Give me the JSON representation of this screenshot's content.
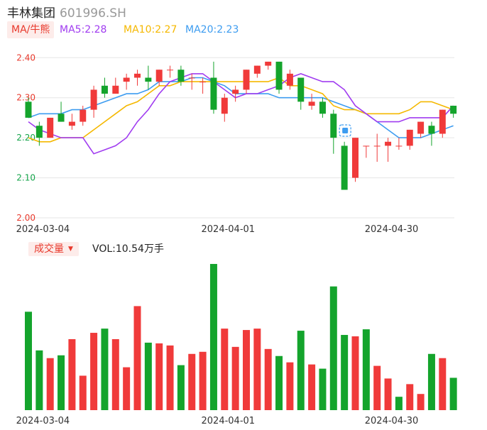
{
  "header": {
    "name": "丰林集团",
    "code": "601996.SH"
  },
  "ma_legend": {
    "tab_label": "MA/牛熊",
    "ma5": {
      "label": "MA5:2.28",
      "color": "#a03cf0"
    },
    "ma10": {
      "label": "MA10:2.27",
      "color": "#f5b800"
    },
    "ma20": {
      "label": "MA20:2.23",
      "color": "#3d9cf0"
    }
  },
  "volume_legend": {
    "tab_label": "成交量",
    "caret": "▼",
    "vol_label": "VOL:10.54万手"
  },
  "colors": {
    "up": "#f03a3a",
    "down": "#14a42c",
    "grid": "#e6e6e6"
  },
  "chart_data": [
    {
      "type": "candlestick",
      "y_ticks": [
        "2.40",
        "2.30",
        "2.20",
        "2.10",
        "2.00"
      ],
      "y_tick_values": [
        2.4,
        2.3,
        2.2,
        2.1,
        2.0
      ],
      "ylim": [
        2.0,
        2.42
      ],
      "x_tick_labels": [
        "2024-03-04",
        "2024-04-01",
        "2024-04-30"
      ],
      "x_tick_index": [
        1,
        18,
        33
      ],
      "candles": [
        {
          "o": 2.29,
          "c": 2.25,
          "h": 2.3,
          "l": 2.25
        },
        {
          "o": 2.23,
          "c": 2.2,
          "h": 2.24,
          "l": 2.18
        },
        {
          "o": 2.2,
          "c": 2.25,
          "h": 2.25,
          "l": 2.2
        },
        {
          "o": 2.26,
          "c": 2.24,
          "h": 2.29,
          "l": 2.24
        },
        {
          "o": 2.23,
          "c": 2.24,
          "h": 2.26,
          "l": 2.22
        },
        {
          "o": 2.24,
          "c": 2.27,
          "h": 2.28,
          "l": 2.23
        },
        {
          "o": 2.27,
          "c": 2.32,
          "h": 2.33,
          "l": 2.25
        },
        {
          "o": 2.33,
          "c": 2.31,
          "h": 2.35,
          "l": 2.3
        },
        {
          "o": 2.31,
          "c": 2.33,
          "h": 2.35,
          "l": 2.31
        },
        {
          "o": 2.34,
          "c": 2.35,
          "h": 2.36,
          "l": 2.32
        },
        {
          "o": 2.35,
          "c": 2.36,
          "h": 2.37,
          "l": 2.33
        },
        {
          "o": 2.35,
          "c": 2.34,
          "h": 2.38,
          "l": 2.32
        },
        {
          "o": 2.34,
          "c": 2.37,
          "h": 2.37,
          "l": 2.33
        },
        {
          "o": 2.37,
          "c": 2.37,
          "h": 2.38,
          "l": 2.35
        },
        {
          "o": 2.37,
          "c": 2.34,
          "h": 2.38,
          "l": 2.33
        },
        {
          "o": 2.35,
          "c": 2.35,
          "h": 2.36,
          "l": 2.32
        },
        {
          "o": 2.34,
          "c": 2.34,
          "h": 2.35,
          "l": 2.31
        },
        {
          "o": 2.35,
          "c": 2.27,
          "h": 2.39,
          "l": 2.26
        },
        {
          "o": 2.26,
          "c": 2.3,
          "h": 2.31,
          "l": 2.24
        },
        {
          "o": 2.31,
          "c": 2.32,
          "h": 2.33,
          "l": 2.29
        },
        {
          "o": 2.32,
          "c": 2.37,
          "h": 2.37,
          "l": 2.31
        },
        {
          "o": 2.36,
          "c": 2.38,
          "h": 2.38,
          "l": 2.35
        },
        {
          "o": 2.38,
          "c": 2.39,
          "h": 2.39,
          "l": 2.37
        },
        {
          "o": 2.39,
          "c": 2.32,
          "h": 2.39,
          "l": 2.31
        },
        {
          "o": 2.33,
          "c": 2.36,
          "h": 2.37,
          "l": 2.32
        },
        {
          "o": 2.35,
          "c": 2.29,
          "h": 2.35,
          "l": 2.27
        },
        {
          "o": 2.28,
          "c": 2.29,
          "h": 2.31,
          "l": 2.27
        },
        {
          "o": 2.29,
          "c": 2.26,
          "h": 2.3,
          "l": 2.25
        },
        {
          "o": 2.26,
          "c": 2.2,
          "h": 2.27,
          "l": 2.16
        },
        {
          "o": 2.18,
          "c": 2.07,
          "h": 2.19,
          "l": 2.07
        },
        {
          "o": 2.1,
          "c": 2.2,
          "h": 2.2,
          "l": 2.09
        },
        {
          "o": 2.18,
          "c": 2.18,
          "h": 2.18,
          "l": 2.15
        },
        {
          "o": 2.18,
          "c": 2.18,
          "h": 2.21,
          "l": 2.14
        },
        {
          "o": 2.18,
          "c": 2.19,
          "h": 2.2,
          "l": 2.14
        },
        {
          "o": 2.18,
          "c": 2.18,
          "h": 2.2,
          "l": 2.17
        },
        {
          "o": 2.18,
          "c": 2.22,
          "h": 2.22,
          "l": 2.17
        },
        {
          "o": 2.21,
          "c": 2.24,
          "h": 2.24,
          "l": 2.2
        },
        {
          "o": 2.23,
          "c": 2.21,
          "h": 2.24,
          "l": 2.18
        },
        {
          "o": 2.21,
          "c": 2.27,
          "h": 2.27,
          "l": 2.2
        },
        {
          "o": 2.28,
          "c": 2.26,
          "h": 2.28,
          "l": 2.25
        }
      ],
      "ma5": [
        2.24,
        2.22,
        2.21,
        2.2,
        2.2,
        2.2,
        2.16,
        2.17,
        2.18,
        2.2,
        2.24,
        2.27,
        2.31,
        2.34,
        2.35,
        2.36,
        2.36,
        2.34,
        2.32,
        2.3,
        2.31,
        2.31,
        2.32,
        2.33,
        2.35,
        2.36,
        2.35,
        2.34,
        2.34,
        2.32,
        2.28,
        2.26,
        2.24,
        2.24,
        2.24,
        2.25,
        2.25,
        2.25,
        2.25,
        2.28
      ],
      "ma10": [
        2.2,
        2.19,
        2.19,
        2.2,
        2.2,
        2.2,
        2.22,
        2.24,
        2.26,
        2.28,
        2.29,
        2.31,
        2.33,
        2.33,
        2.34,
        2.34,
        2.34,
        2.34,
        2.34,
        2.34,
        2.34,
        2.34,
        2.34,
        2.35,
        2.33,
        2.33,
        2.32,
        2.31,
        2.28,
        2.27,
        2.27,
        2.26,
        2.26,
        2.26,
        2.26,
        2.27,
        2.29,
        2.29,
        2.28,
        2.27
      ],
      "ma20": [
        2.25,
        2.26,
        2.26,
        2.26,
        2.27,
        2.27,
        2.28,
        2.29,
        2.3,
        2.31,
        2.31,
        2.32,
        2.34,
        2.34,
        2.34,
        2.35,
        2.35,
        2.34,
        2.33,
        2.31,
        2.31,
        2.31,
        2.31,
        2.3,
        2.3,
        2.3,
        2.3,
        2.3,
        2.29,
        2.28,
        2.27,
        2.26,
        2.24,
        2.22,
        2.2,
        2.2,
        2.2,
        2.21,
        2.22,
        2.23
      ]
    },
    {
      "type": "bar",
      "title": "成交量",
      "x_tick_labels": [
        "2024-03-04",
        "2024-04-01",
        "2024-04-30"
      ],
      "x_tick_index": [
        1,
        18,
        33
      ],
      "ylim": [
        0,
        21
      ],
      "values": [
        14.0,
        8.5,
        7.4,
        7.8,
        10.1,
        4.9,
        11.0,
        11.6,
        10.1,
        6.1,
        14.8,
        9.6,
        9.5,
        9.2,
        6.4,
        8.0,
        8.3,
        20.8,
        11.6,
        9.0,
        11.4,
        11.6,
        8.7,
        7.7,
        6.8,
        11.3,
        6.5,
        5.9,
        17.6,
        10.7,
        10.5,
        11.5,
        6.3,
        4.5,
        1.9,
        3.7,
        2.3,
        8.0,
        7.4,
        4.6
      ],
      "up": [
        false,
        false,
        true,
        false,
        true,
        true,
        true,
        false,
        true,
        true,
        true,
        false,
        true,
        true,
        false,
        true,
        true,
        false,
        true,
        true,
        true,
        true,
        true,
        false,
        true,
        false,
        true,
        false,
        false,
        false,
        true,
        false,
        true,
        true,
        false,
        true,
        true,
        false,
        true,
        false
      ]
    }
  ]
}
